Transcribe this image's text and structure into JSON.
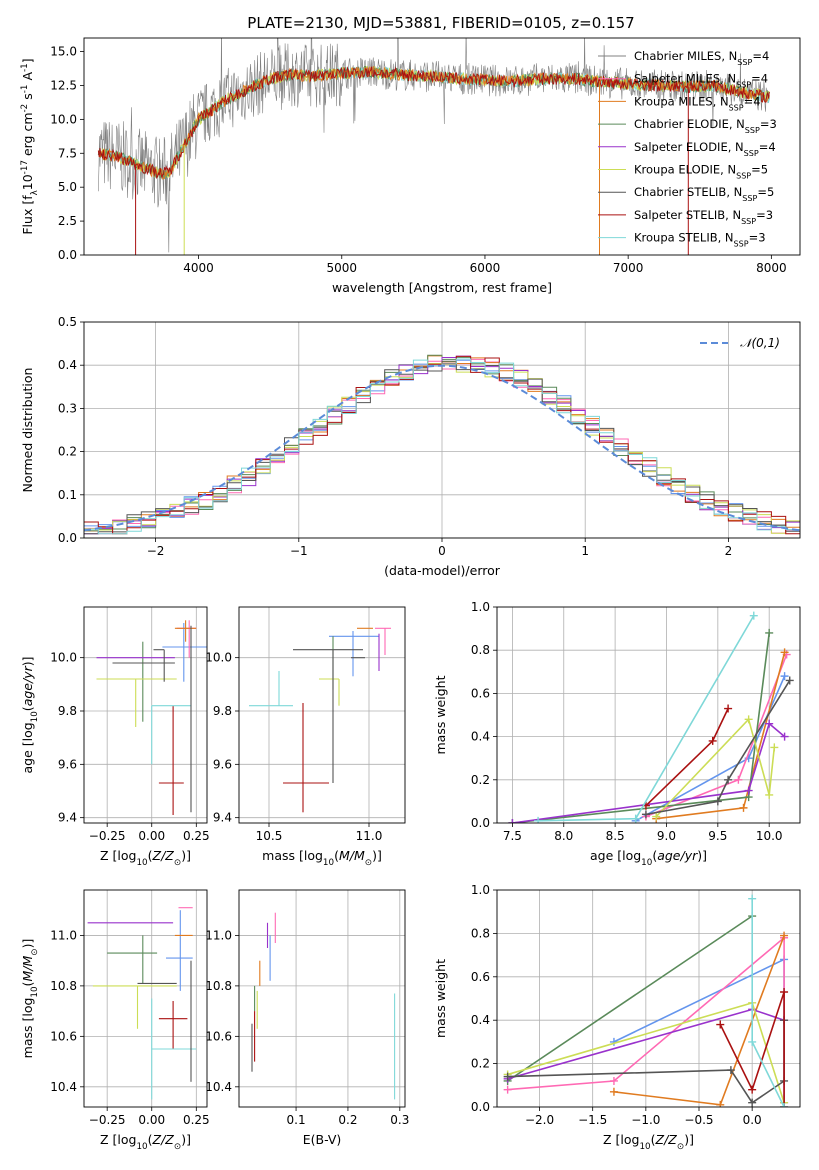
{
  "figure_title": "PLATE=2130, MJD=53881, FIBERID=0105, z=0.157",
  "colors": {
    "chab_miles": "#6495ed",
    "salp_miles": "#ff69b4",
    "krou_miles": "#e07b20",
    "chab_elodie": "#5a8a5a",
    "salp_elodie": "#9932cc",
    "krou_elodie": "#ccdd55",
    "chab_stelib": "#555555",
    "salp_stelib": "#aa1111",
    "krou_stelib": "#7fd8d8",
    "spectrum_grey": "#808080",
    "gaussian": "#5b8bd8"
  },
  "chart_data": [
    {
      "id": "spectrum",
      "type": "line",
      "title": "PLATE=2130, MJD=53881, FIBERID=0105, z=0.157",
      "xlabel": "wavelength [Angstrom, rest frame]",
      "ylabel": "Flux [f$_\\lambda$10$^{-17}$ erg cm$^{-2}$ s$^{-1}$ A$^{-1}$]",
      "xlim": [
        3200,
        8200
      ],
      "ylim": [
        0,
        16
      ],
      "xticks": [
        "4000",
        "5000",
        "6000",
        "7000",
        "8000"
      ],
      "yticks": [
        "0.0",
        "2.5",
        "5.0",
        "7.5",
        "10.0",
        "12.5",
        "15.0"
      ],
      "grid": false,
      "legend_position": "right",
      "x": [
        3300,
        3450,
        3600,
        3750,
        3800,
        4000,
        4200,
        4400,
        4500,
        4650,
        4800,
        5000,
        5200,
        5400,
        5600,
        5800,
        6000,
        6200,
        6400,
        6600,
        6800,
        7000,
        7200,
        7400,
        7600,
        7800,
        8000
      ],
      "y": [
        7.5,
        7.2,
        6.5,
        6.0,
        6.2,
        10.0,
        11.5,
        12.5,
        13.0,
        13.3,
        13.2,
        13.4,
        13.5,
        13.3,
        13.2,
        13.0,
        12.9,
        12.8,
        13.0,
        13.0,
        12.8,
        12.6,
        12.5,
        12.4,
        12.5,
        12.0,
        11.6
      ],
      "series": [
        {
          "name": "Chabrier MILES, N$_{SSP}$=4",
          "color_key": "spectrum_grey"
        },
        {
          "name": "Salpeter MILES, N$_{SSP}$=4",
          "color_key": "salp_miles"
        },
        {
          "name": "Kroupa MILES, N$_{SSP}$=4",
          "color_key": "krou_miles"
        },
        {
          "name": "Chabrier ELODIE, N$_{SSP}$=3",
          "color_key": "chab_elodie"
        },
        {
          "name": "Salpeter ELODIE, N$_{SSP}$=4",
          "color_key": "salp_elodie"
        },
        {
          "name": "Kroupa ELODIE, N$_{SSP}$=5",
          "color_key": "krou_elodie"
        },
        {
          "name": "Chabrier STELIB, N$_{SSP}$=5",
          "color_key": "chab_stelib"
        },
        {
          "name": "Salpeter STELIB, N$_{SSP}$=3",
          "color_key": "salp_stelib"
        },
        {
          "name": "Kroupa STELIB, N$_{SSP}$=3",
          "color_key": "krou_stelib"
        }
      ]
    },
    {
      "id": "residuals",
      "type": "line",
      "xlabel": "(data-model)/error",
      "ylabel": "Normed distribution",
      "xlim": [
        -2.5,
        2.5
      ],
      "ylim": [
        0,
        0.5
      ],
      "xticks": [
        "−2",
        "−1",
        "0",
        "1",
        "2"
      ],
      "yticks": [
        "0.0",
        "0.1",
        "0.2",
        "0.3",
        "0.4",
        "0.5"
      ],
      "grid": true,
      "legend_position": "top-right",
      "legend": [
        "$\\mathcal{N}(0,1)$"
      ]
    },
    {
      "id": "age_vs_Z",
      "type": "scatter",
      "xlabel": "Z [log$_{10}$($Z/Z_\\odot$)]",
      "ylabel": "age  [log$_{10}$($age/yr$)]",
      "xlim": [
        -0.38,
        0.31
      ],
      "ylim": [
        9.38,
        10.19
      ],
      "xticks": [
        "−0.25",
        "0.00",
        "0.25"
      ],
      "yticks": [
        "9.4",
        "9.6",
        "9.8",
        "10.0"
      ],
      "grid": true,
      "points": [
        {
          "key": "chab_miles",
          "x": 0.18,
          "y": 10.04,
          "xerr": [
            0.12,
            0.14
          ],
          "yerr": [
            0.13,
            0.09
          ]
        },
        {
          "key": "salp_miles",
          "x": 0.21,
          "y": 10.11,
          "xerr": [
            0.07,
            0.04
          ],
          "yerr": [
            0.11,
            0.03
          ]
        },
        {
          "key": "krou_miles",
          "x": 0.19,
          "y": 10.11,
          "xerr": [
            0.06,
            0.06
          ],
          "yerr": [
            0.05,
            0.03
          ]
        },
        {
          "key": "chab_elodie",
          "x": -0.05,
          "y": 9.97,
          "xerr": [
            0.0,
            0.0
          ],
          "yerr": [
            0.21,
            0.09
          ]
        },
        {
          "key": "salp_elodie",
          "x": -0.1,
          "y": 10.0,
          "xerr": [
            0.21,
            0.23
          ],
          "yerr": [
            0.0,
            0.0
          ]
        },
        {
          "key": "krou_elodie",
          "x": -0.09,
          "y": 9.92,
          "xerr": [
            0.22,
            0.23
          ],
          "yerr": [
            0.18,
            0.0
          ]
        },
        {
          "key": "chab_stelib",
          "x": -0.02,
          "y": 9.98,
          "xerr": [
            0.2,
            0.15
          ],
          "yerr": [
            0.0,
            0.0
          ]
        },
        {
          "key": "salp_stelib",
          "x": 0.12,
          "y": 9.53,
          "xerr": [
            0.08,
            0.06
          ],
          "yerr": [
            0.12,
            0.29
          ]
        },
        {
          "key": "krou_stelib",
          "x": 0.0,
          "y": 9.82,
          "xerr": [
            0.0,
            0.22
          ],
          "yerr": [
            0.22,
            0.0
          ]
        },
        {
          "key": "chab_stelib",
          "x": 0.22,
          "y": 9.82,
          "xerr": [
            0.0,
            0.0
          ],
          "yerr": [
            0.4,
            0.3
          ]
        },
        {
          "key": "chab_stelib",
          "x": 0.07,
          "y": 10.03,
          "xerr": [
            0.06,
            0.0
          ],
          "yerr": [
            0.12,
            0.0
          ]
        }
      ]
    },
    {
      "id": "age_vs_mass",
      "type": "scatter",
      "xlabel": "mass [log$_{10}$($M/M_\\odot$)]",
      "xlim": [
        10.35,
        11.18
      ],
      "ylim": [
        9.38,
        10.19
      ],
      "xticks": [
        "10.5",
        "11.0"
      ],
      "yticks": [
        "9.4",
        "9.6",
        "9.8",
        "10.0"
      ],
      "grid": true,
      "points": [
        {
          "key": "chab_miles",
          "x": 10.92,
          "y": 10.08,
          "xerr": [
            0.12,
            0.13
          ],
          "yerr": [
            0.15,
            0.02
          ]
        },
        {
          "key": "salp_miles",
          "x": 11.08,
          "y": 10.11,
          "xerr": [
            0.05,
            0.03
          ],
          "yerr": [
            0.1,
            0.0
          ]
        },
        {
          "key": "krou_miles",
          "x": 10.97,
          "y": 10.11,
          "xerr": [
            0.03,
            0.05
          ],
          "yerr": [
            0.0,
            0.0
          ]
        },
        {
          "key": "chab_elodie",
          "x": 10.82,
          "y": 10.03,
          "xerr": [
            0.0,
            0.0
          ],
          "yerr": [
            0.15,
            0.05
          ]
        },
        {
          "key": "salp_elodie",
          "x": 11.05,
          "y": 10.03,
          "xerr": [
            0.0,
            0.0
          ],
          "yerr": [
            0.08,
            0.06
          ]
        },
        {
          "key": "krou_elodie",
          "x": 10.85,
          "y": 9.92,
          "xerr": [
            0.1,
            0.0
          ],
          "yerr": [
            0.1,
            0.0
          ]
        },
        {
          "key": "chab_stelib",
          "x": 10.82,
          "y": 10.03,
          "xerr": [
            0.2,
            0.15
          ],
          "yerr": [
            0.5,
            0.0
          ]
        },
        {
          "key": "salp_stelib",
          "x": 10.67,
          "y": 9.53,
          "xerr": [
            0.1,
            0.13
          ],
          "yerr": [
            0.11,
            0.3
          ]
        },
        {
          "key": "krou_stelib",
          "x": 10.55,
          "y": 9.82,
          "xerr": [
            0.15,
            0.07
          ],
          "yerr": [
            0.0,
            0.13
          ]
        },
        {
          "key": "chab_stelib",
          "x": 10.98,
          "y": 10.0,
          "xerr": [
            0.07,
            0.0
          ],
          "yerr": [
            0.0,
            0.0
          ]
        }
      ]
    },
    {
      "id": "weight_vs_age",
      "type": "line",
      "xlabel": "age  [log$_{10}$($age/yr$)]",
      "ylabel": "mass weight",
      "xlim": [
        7.35,
        10.3
      ],
      "ylim": [
        0,
        1
      ],
      "xticks": [
        "7.5",
        "8.0",
        "8.5",
        "9.0",
        "9.5",
        "10.0"
      ],
      "yticks": [
        "0.0",
        "0.2",
        "0.4",
        "0.6",
        "0.8",
        "1.0"
      ],
      "grid": true,
      "series": [
        {
          "key": "chab_miles",
          "x": [
            8.7,
            9.8,
            10.15
          ],
          "y": [
            0.01,
            0.3,
            0.68
          ]
        },
        {
          "key": "salp_miles",
          "x": [
            8.8,
            9.7,
            10.17
          ],
          "y": [
            0.03,
            0.2,
            0.78
          ]
        },
        {
          "key": "krou_miles",
          "x": [
            8.9,
            9.75,
            10.15
          ],
          "y": [
            0.02,
            0.07,
            0.79
          ]
        },
        {
          "key": "chab_elodie",
          "x": [
            7.5,
            9.8,
            10.0
          ],
          "y": [
            0.0,
            0.12,
            0.88
          ]
        },
        {
          "key": "salp_elodie",
          "x": [
            7.5,
            9.8,
            10.0,
            10.15
          ],
          "y": [
            0.0,
            0.15,
            0.46,
            0.4
          ]
        },
        {
          "key": "krou_elodie",
          "x": [
            8.9,
            9.8,
            10.0,
            10.05
          ],
          "y": [
            0.03,
            0.48,
            0.13,
            0.35
          ]
        },
        {
          "key": "chab_stelib",
          "x": [
            8.8,
            9.5,
            9.6,
            10.2
          ],
          "y": [
            0.04,
            0.1,
            0.2,
            0.66
          ]
        },
        {
          "key": "salp_stelib",
          "x": [
            8.8,
            9.45,
            9.6
          ],
          "y": [
            0.08,
            0.38,
            0.53
          ]
        },
        {
          "key": "krou_stelib",
          "x": [
            7.75,
            8.7,
            9.85
          ],
          "y": [
            0.01,
            0.02,
            0.96
          ]
        }
      ]
    },
    {
      "id": "mass_vs_Z",
      "type": "scatter",
      "xlabel": "Z [log$_{10}$($Z/Z_\\odot$)]",
      "ylabel": "mass [log$_{10}$($M/M_\\odot$)]",
      "xlim": [
        -0.38,
        0.31
      ],
      "ylim": [
        10.32,
        11.18
      ],
      "xticks": [
        "−0.25",
        "0.00",
        "0.25"
      ],
      "yticks": [
        "10.4",
        "10.6",
        "10.8",
        "11.0"
      ],
      "grid": true,
      "points": [
        {
          "key": "chab_miles",
          "x": 0.16,
          "y": 10.91,
          "xerr": [
            0.08,
            0.07
          ],
          "yerr": [
            0.13,
            0.19
          ]
        },
        {
          "key": "salp_miles",
          "x": 0.2,
          "y": 11.11,
          "xerr": [
            0.05,
            0.03
          ],
          "yerr": [
            0.0,
            0.0
          ]
        },
        {
          "key": "krou_miles",
          "x": 0.18,
          "y": 11.0,
          "xerr": [
            0.05,
            0.05
          ],
          "yerr": [
            0.0,
            0.0
          ]
        },
        {
          "key": "chab_elodie",
          "x": -0.05,
          "y": 10.93,
          "xerr": [
            0.2,
            0.08
          ],
          "yerr": [
            0.12,
            0.07
          ]
        },
        {
          "key": "salp_elodie",
          "x": -0.1,
          "y": 11.05,
          "xerr": [
            0.26,
            0.22
          ],
          "yerr": [
            0.0,
            0.0
          ]
        },
        {
          "key": "krou_elodie",
          "x": -0.08,
          "y": 10.8,
          "xerr": [
            0.25,
            0.22
          ],
          "yerr": [
            0.17,
            0.0
          ]
        },
        {
          "key": "chab_stelib",
          "x": 0.04,
          "y": 10.81,
          "xerr": [
            0.12,
            0.1
          ],
          "yerr": [
            0.0,
            0.0
          ]
        },
        {
          "key": "salp_stelib",
          "x": 0.12,
          "y": 10.67,
          "xerr": [
            0.08,
            0.08
          ],
          "yerr": [
            0.12,
            0.07
          ]
        },
        {
          "key": "krou_stelib",
          "x": 0.0,
          "y": 10.55,
          "xerr": [
            0.0,
            0.25
          ],
          "yerr": [
            0.2,
            0.2
          ]
        },
        {
          "key": "chab_stelib",
          "x": 0.22,
          "y": 10.8,
          "xerr": [
            0.0,
            0.0
          ],
          "yerr": [
            0.38,
            0.1
          ]
        }
      ]
    },
    {
      "id": "mass_vs_ebv",
      "type": "scatter",
      "xlabel": "E(B-V)",
      "xlim": [
        -0.01,
        0.31
      ],
      "ylim": [
        10.32,
        11.18
      ],
      "xticks": [
        "0.1",
        "0.2",
        "0.3"
      ],
      "yticks": [
        "10.4",
        "10.6",
        "10.8",
        "11.0"
      ],
      "grid": true,
      "points": [
        {
          "key": "chab_miles",
          "x": 0.05,
          "y": 10.9,
          "yerr": [
            0.08,
            0.1
          ]
        },
        {
          "key": "salp_miles",
          "x": 0.06,
          "y": 11.02,
          "yerr": [
            0.05,
            0.07
          ]
        },
        {
          "key": "krou_miles",
          "x": 0.03,
          "y": 10.85,
          "yerr": [
            0.05,
            0.05
          ]
        },
        {
          "key": "chab_elodie",
          "x": 0.02,
          "y": 10.75,
          "yerr": [
            0.05,
            0.05
          ]
        },
        {
          "key": "salp_elodie",
          "x": 0.045,
          "y": 11.0,
          "yerr": [
            0.05,
            0.05
          ]
        },
        {
          "key": "krou_elodie",
          "x": 0.025,
          "y": 10.78,
          "yerr": [
            0.15,
            0.0
          ]
        },
        {
          "key": "chab_stelib",
          "x": 0.015,
          "y": 10.6,
          "yerr": [
            0.14,
            0.05
          ]
        },
        {
          "key": "salp_stelib",
          "x": 0.02,
          "y": 10.6,
          "yerr": [
            0.1,
            0.1
          ]
        },
        {
          "key": "krou_stelib",
          "x": 0.29,
          "y": 10.55,
          "yerr": [
            0.2,
            0.22
          ]
        }
      ]
    },
    {
      "id": "weight_vs_Z",
      "type": "line",
      "xlabel": "Z [log$_{10}$($Z/Z_\\odot$)]",
      "ylabel": "mass weight",
      "xlim": [
        -2.4,
        0.45
      ],
      "ylim": [
        0,
        1
      ],
      "xticks": [
        "−2.0",
        "−1.5",
        "−1.0",
        "−0.5",
        "0.0"
      ],
      "yticks": [
        "0.0",
        "0.2",
        "0.4",
        "0.6",
        "0.8",
        "1.0"
      ],
      "grid": true,
      "series": [
        {
          "key": "chab_miles",
          "x": [
            -1.3,
            0.3,
            0.3
          ],
          "y": [
            0.3,
            0.68,
            0.02
          ]
        },
        {
          "key": "salp_miles",
          "x": [
            -2.3,
            -1.3,
            0.3,
            0.3
          ],
          "y": [
            0.08,
            0.12,
            0.78,
            0.02
          ]
        },
        {
          "key": "krou_miles",
          "x": [
            -1.3,
            -0.3,
            0.3
          ],
          "y": [
            0.07,
            0.01,
            0.79
          ]
        },
        {
          "key": "chab_elodie",
          "x": [
            -2.3,
            0.0
          ],
          "y": [
            0.12,
            0.88
          ]
        },
        {
          "key": "salp_elodie",
          "x": [
            -2.3,
            0.0,
            0.3
          ],
          "y": [
            0.13,
            0.45,
            0.4
          ]
        },
        {
          "key": "krou_elodie",
          "x": [
            -2.3,
            0.0,
            0.3
          ],
          "y": [
            0.15,
            0.48,
            0.02
          ]
        },
        {
          "key": "chab_stelib",
          "x": [
            -2.3,
            -0.2,
            0.0,
            0.3,
            0.3
          ],
          "y": [
            0.14,
            0.17,
            0.02,
            0.12,
            0.4
          ]
        },
        {
          "key": "salp_stelib",
          "x": [
            -0.3,
            0.0,
            0.3,
            0.3
          ],
          "y": [
            0.38,
            0.08,
            0.53,
            0.0
          ]
        },
        {
          "key": "krou_stelib",
          "x": [
            0.0,
            0.0,
            0.3
          ],
          "y": [
            0.96,
            0.3,
            0.0
          ]
        }
      ]
    }
  ]
}
